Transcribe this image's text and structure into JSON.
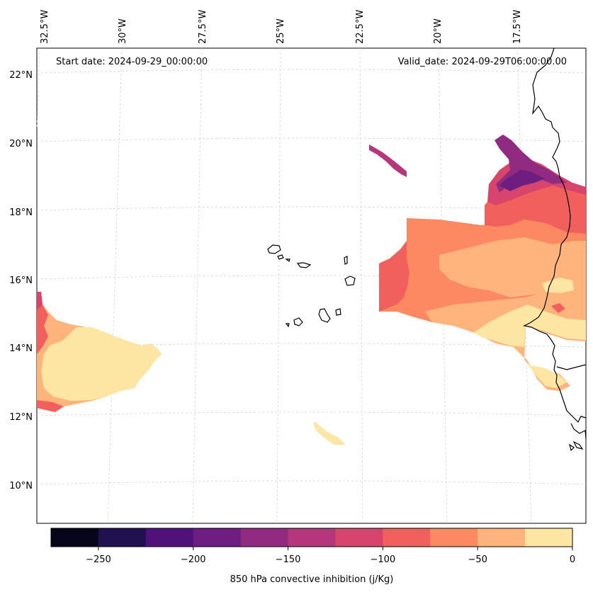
{
  "header": {
    "start_date": "Start date: 2024-09-29_00:00:00",
    "valid_date": "Valid_date: 2024-09-29T06:00:00.00"
  },
  "lon_labels": [
    "32.5°W",
    "30°W",
    "27.5°W",
    "25°W",
    "22.5°W",
    "20°W",
    "17.5°W"
  ],
  "lat_labels": [
    "22°N",
    "20°N",
    "18°N",
    "16°N",
    "14°N",
    "12°N",
    "10°N"
  ],
  "colorbar": {
    "label": "850 hPa convective inhibition (j/Kg)",
    "ticks": [
      "−250",
      "−200",
      "−150",
      "−100",
      "−50",
      "0"
    ],
    "range": [
      -275,
      0
    ],
    "colors": [
      "#06051a",
      "#221150",
      "#4f127b",
      "#6e1d81",
      "#912b81",
      "#b5367a",
      "#d8456c",
      "#f1605d",
      "#fc8961",
      "#feb47b",
      "#fde6a4"
    ]
  },
  "colors": {
    "grid": "#cccccc",
    "coastline": "#000000",
    "frame": "#000000"
  }
}
